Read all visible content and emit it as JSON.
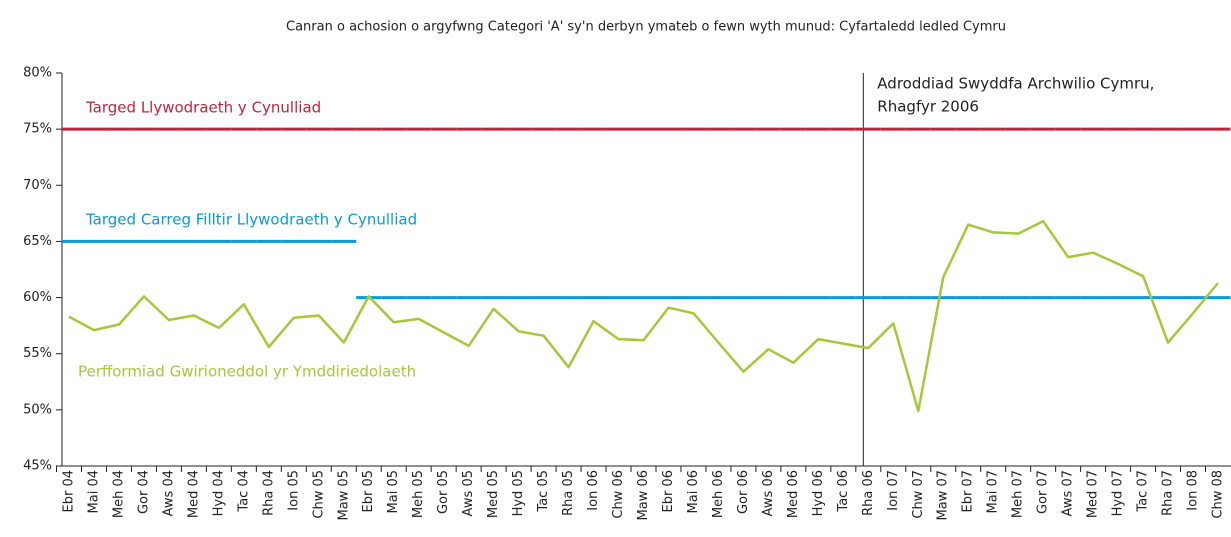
{
  "chart_data": {
    "type": "line",
    "title": "Canran o achosion o argyfwng Categori 'A' sy'n derbyn ymateb o fewn wyth munud: Cyfartaledd ledled Cymru",
    "categories": [
      "Ebr 04",
      "Mai 04",
      "Meh 04",
      "Gor 04",
      "Aws 04",
      "Med 04",
      "Hyd 04",
      "Tac 04",
      "Rha 04",
      "Ion 05",
      "Chw 05",
      "Maw 05",
      "Ebr 05",
      "Mai 05",
      "Meh 05",
      "Gor 05",
      "Aws 05",
      "Med 05",
      "Hyd 05",
      "Tac 05",
      "Rha 05",
      "Ion 06",
      "Chw 06",
      "Maw 06",
      "Ebr 06",
      "Mai 06",
      "Meh 06",
      "Gor 06",
      "Aws 06",
      "Med 06",
      "Hyd 06",
      "Tac 06",
      "Rha 06",
      "Ion 07",
      "Chw 07",
      "Maw 07",
      "Ebr 07",
      "Mai 07",
      "Meh 07",
      "Gor 07",
      "Aws 07",
      "Med 07",
      "Hyd 07",
      "Tac 07",
      "Rha 07",
      "Ion 08",
      "Chw 08"
    ],
    "series": [
      {
        "name": "Targed Llywodraeth y Cynulliad",
        "color": "#c0243c",
        "style": "target",
        "values": [
          75,
          75,
          75,
          75,
          75,
          75,
          75,
          75,
          75,
          75,
          75,
          75,
          75,
          75,
          75,
          75,
          75,
          75,
          75,
          75,
          75,
          75,
          75,
          75,
          75,
          75,
          75,
          75,
          75,
          75,
          75,
          75,
          75,
          75,
          75,
          75,
          75,
          75,
          75,
          75,
          75,
          75,
          75,
          75,
          75,
          75,
          75
        ]
      },
      {
        "name": "Targed Carreg Filltir Llywodraeth y Cynulliad",
        "color": "#0b9ad6",
        "style": "target",
        "values": [
          65,
          65,
          65,
          65,
          65,
          65,
          65,
          65,
          65,
          65,
          65,
          65,
          60,
          60,
          60,
          60,
          60,
          60,
          60,
          60,
          60,
          60,
          60,
          60,
          60,
          60,
          60,
          60,
          60,
          60,
          60,
          60,
          60,
          60,
          60,
          60,
          60,
          60,
          60,
          60,
          60,
          60,
          60,
          60,
          60,
          60,
          60
        ]
      },
      {
        "name": "Perfformiad Gwirioneddol  yr Ymddiriedolaeth",
        "color": "#a5c83a",
        "style": "line",
        "values": [
          58.3,
          57.1,
          57.6,
          60.1,
          58.0,
          58.4,
          57.3,
          59.4,
          55.6,
          58.2,
          58.4,
          56.0,
          60.1,
          57.8,
          58.1,
          56.9,
          55.7,
          59.0,
          57.0,
          56.6,
          53.8,
          57.9,
          56.3,
          56.2,
          59.1,
          58.6,
          56.0,
          53.4,
          55.4,
          54.2,
          56.3,
          55.9,
          55.5,
          57.7,
          49.9,
          61.8,
          66.5,
          65.8,
          65.7,
          66.8,
          63.6,
          64.0,
          63.0,
          61.9,
          56.0,
          58.6,
          61.3
        ]
      }
    ],
    "annotation": {
      "at": "Rha 06",
      "lines": [
        "Adroddiad Swyddfa Archwilio Cymru,",
        "Rhagfyr 2006"
      ]
    },
    "ylim": [
      45,
      80
    ],
    "yticks": [
      {
        "value": 45,
        "label": "45%"
      },
      {
        "value": 50,
        "label": "50%"
      },
      {
        "value": 55,
        "label": "55%"
      },
      {
        "value": 60,
        "label": "60%"
      },
      {
        "value": 65,
        "label": "65%"
      },
      {
        "value": 70,
        "label": "70%"
      },
      {
        "value": 75,
        "label": "75%"
      },
      {
        "value": 80,
        "label": "80%"
      }
    ],
    "grid": false
  }
}
